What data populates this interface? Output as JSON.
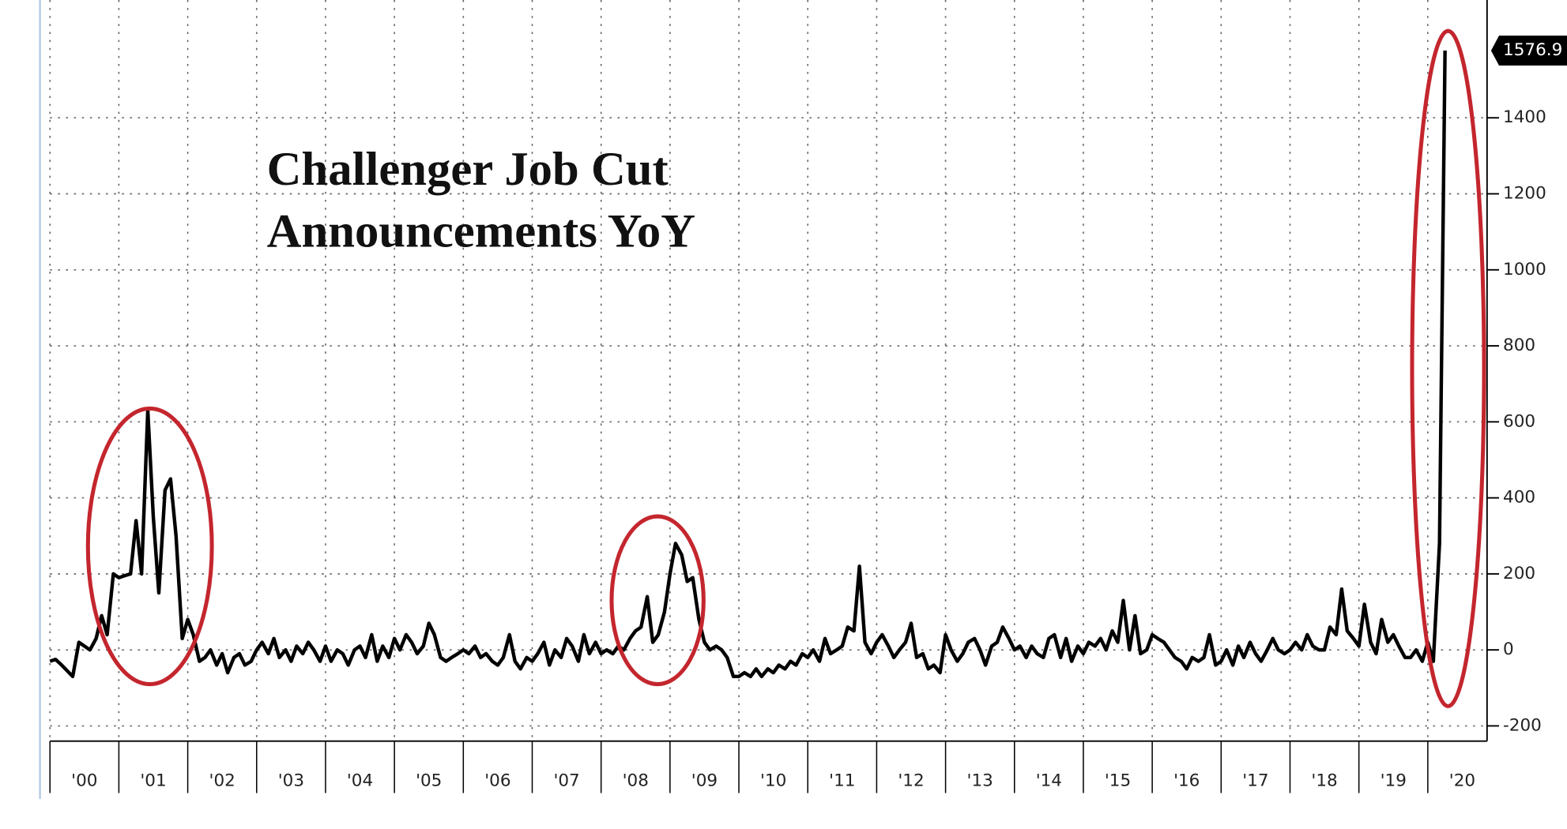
{
  "chart_data": {
    "type": "line",
    "title": [
      "Challenger Job Cut",
      "Announcements YoY"
    ],
    "color": "#000000",
    "grid": true,
    "x": [
      2000.0,
      2000.08,
      2000.17,
      2000.25,
      2000.33,
      2000.42,
      2000.5,
      2000.58,
      2000.67,
      2000.75,
      2000.83,
      2000.92,
      2001.0,
      2001.08,
      2001.17,
      2001.25,
      2001.33,
      2001.42,
      2001.5,
      2001.58,
      2001.67,
      2001.75,
      2001.83,
      2001.92,
      2002.0,
      2002.08,
      2002.17,
      2002.25,
      2002.33,
      2002.42,
      2002.5,
      2002.58,
      2002.67,
      2002.75,
      2002.83,
      2002.92,
      2003.0,
      2003.08,
      2003.17,
      2003.25,
      2003.33,
      2003.42,
      2003.5,
      2003.58,
      2003.67,
      2003.75,
      2003.83,
      2003.92,
      2004.0,
      2004.08,
      2004.17,
      2004.25,
      2004.33,
      2004.42,
      2004.5,
      2004.58,
      2004.67,
      2004.75,
      2004.83,
      2004.92,
      2005.0,
      2005.08,
      2005.17,
      2005.25,
      2005.33,
      2005.42,
      2005.5,
      2005.58,
      2005.67,
      2005.75,
      2005.83,
      2005.92,
      2006.0,
      2006.08,
      2006.17,
      2006.25,
      2006.33,
      2006.42,
      2006.5,
      2006.58,
      2006.67,
      2006.75,
      2006.83,
      2006.92,
      2007.0,
      2007.08,
      2007.17,
      2007.25,
      2007.33,
      2007.42,
      2007.5,
      2007.58,
      2007.67,
      2007.75,
      2007.83,
      2007.92,
      2008.0,
      2008.08,
      2008.17,
      2008.25,
      2008.33,
      2008.42,
      2008.5,
      2008.58,
      2008.67,
      2008.75,
      2008.83,
      2008.92,
      2009.0,
      2009.08,
      2009.17,
      2009.25,
      2009.33,
      2009.42,
      2009.5,
      2009.58,
      2009.67,
      2009.75,
      2009.83,
      2009.92,
      2010.0,
      2010.08,
      2010.17,
      2010.25,
      2010.33,
      2010.42,
      2010.5,
      2010.58,
      2010.67,
      2010.75,
      2010.83,
      2010.92,
      2011.0,
      2011.08,
      2011.17,
      2011.25,
      2011.33,
      2011.42,
      2011.5,
      2011.58,
      2011.67,
      2011.75,
      2011.83,
      2011.92,
      2012.0,
      2012.08,
      2012.17,
      2012.25,
      2012.33,
      2012.42,
      2012.5,
      2012.58,
      2012.67,
      2012.75,
      2012.83,
      2012.92,
      2013.0,
      2013.08,
      2013.17,
      2013.25,
      2013.33,
      2013.42,
      2013.5,
      2013.58,
      2013.67,
      2013.75,
      2013.83,
      2013.92,
      2014.0,
      2014.08,
      2014.17,
      2014.25,
      2014.33,
      2014.42,
      2014.5,
      2014.58,
      2014.67,
      2014.75,
      2014.83,
      2014.92,
      2015.0,
      2015.08,
      2015.17,
      2015.25,
      2015.33,
      2015.42,
      2015.5,
      2015.58,
      2015.67,
      2015.75,
      2015.83,
      2015.92,
      2016.0,
      2016.08,
      2016.17,
      2016.25,
      2016.33,
      2016.42,
      2016.5,
      2016.58,
      2016.67,
      2016.75,
      2016.83,
      2016.92,
      2017.0,
      2017.08,
      2017.17,
      2017.25,
      2017.33,
      2017.42,
      2017.5,
      2017.58,
      2017.67,
      2017.75,
      2017.83,
      2017.92,
      2018.0,
      2018.08,
      2018.17,
      2018.25,
      2018.33,
      2018.42,
      2018.5,
      2018.58,
      2018.67,
      2018.75,
      2018.83,
      2018.92,
      2019.0,
      2019.08,
      2019.17,
      2019.25,
      2019.33,
      2019.42,
      2019.5,
      2019.58,
      2019.67,
      2019.75,
      2019.83,
      2019.92,
      2020.0,
      2020.08,
      2020.17,
      2020.25
    ],
    "values": [
      -30,
      -25,
      -40,
      -55,
      -70,
      20,
      10,
      0,
      30,
      90,
      40,
      200,
      190,
      195,
      200,
      340,
      200,
      630,
      350,
      150,
      420,
      450,
      300,
      30,
      80,
      40,
      -30,
      -20,
      0,
      -40,
      -10,
      -60,
      -20,
      -10,
      -40,
      -30,
      0,
      20,
      -10,
      30,
      -20,
      0,
      -30,
      10,
      -10,
      20,
      0,
      -30,
      10,
      -30,
      0,
      -10,
      -40,
      0,
      10,
      -20,
      40,
      -30,
      10,
      -20,
      30,
      0,
      40,
      20,
      -10,
      10,
      70,
      40,
      -20,
      -30,
      -20,
      -10,
      0,
      -10,
      10,
      -20,
      -10,
      -30,
      -40,
      -20,
      40,
      -30,
      -50,
      -20,
      -30,
      -10,
      20,
      -40,
      0,
      -20,
      30,
      10,
      -30,
      40,
      -10,
      20,
      -10,
      0,
      -10,
      10,
      0,
      30,
      50,
      60,
      140,
      20,
      40,
      100,
      200,
      280,
      250,
      180,
      190,
      80,
      20,
      0,
      10,
      0,
      -20,
      -70,
      -70,
      -60,
      -70,
      -50,
      -70,
      -50,
      -60,
      -40,
      -50,
      -30,
      -40,
      -10,
      -20,
      0,
      -30,
      30,
      -10,
      0,
      10,
      60,
      50,
      220,
      20,
      -10,
      20,
      40,
      10,
      -20,
      0,
      20,
      70,
      -20,
      -10,
      -50,
      -40,
      -60,
      40,
      0,
      -30,
      -10,
      20,
      30,
      0,
      -40,
      10,
      20,
      60,
      30,
      0,
      10,
      -20,
      10,
      -10,
      -20,
      30,
      40,
      -20,
      30,
      -30,
      10,
      -10,
      20,
      10,
      30,
      0,
      50,
      20,
      130,
      0,
      90,
      -10,
      0,
      40,
      30,
      20,
      0,
      -20,
      -30,
      -50,
      -20,
      -30,
      -20,
      40,
      -40,
      -30,
      0,
      -40,
      10,
      -20,
      20,
      -10,
      -30,
      0,
      30,
      0,
      -10,
      0,
      20,
      0,
      40,
      10,
      0,
      0,
      60,
      40,
      160,
      50,
      30,
      10,
      120,
      20,
      -10,
      80,
      20,
      40,
      10,
      -20,
      -20,
      0,
      -30,
      20,
      -30,
      280,
      1576.9
    ],
    "xlim": [
      2000,
      2020.86
    ],
    "ylim": [
      -240,
      1710
    ],
    "xticks": [
      {
        "value": 2000,
        "label": "'00"
      },
      {
        "value": 2001,
        "label": "'01"
      },
      {
        "value": 2002,
        "label": "'02"
      },
      {
        "value": 2003,
        "label": "'03"
      },
      {
        "value": 2004,
        "label": "'04"
      },
      {
        "value": 2005,
        "label": "'05"
      },
      {
        "value": 2006,
        "label": "'06"
      },
      {
        "value": 2007,
        "label": "'07"
      },
      {
        "value": 2008,
        "label": "'08"
      },
      {
        "value": 2009,
        "label": "'09"
      },
      {
        "value": 2010,
        "label": "'10"
      },
      {
        "value": 2011,
        "label": "'11"
      },
      {
        "value": 2012,
        "label": "'12"
      },
      {
        "value": 2013,
        "label": "'13"
      },
      {
        "value": 2014,
        "label": "'14"
      },
      {
        "value": 2015,
        "label": "'15"
      },
      {
        "value": 2016,
        "label": "'16"
      },
      {
        "value": 2017,
        "label": "'17"
      },
      {
        "value": 2018,
        "label": "'18"
      },
      {
        "value": 2019,
        "label": "'19"
      },
      {
        "value": 2020,
        "label": "'20"
      }
    ],
    "yticks": [
      -200,
      0,
      200,
      400,
      600,
      800,
      1000,
      1200,
      1400
    ]
  }
}
